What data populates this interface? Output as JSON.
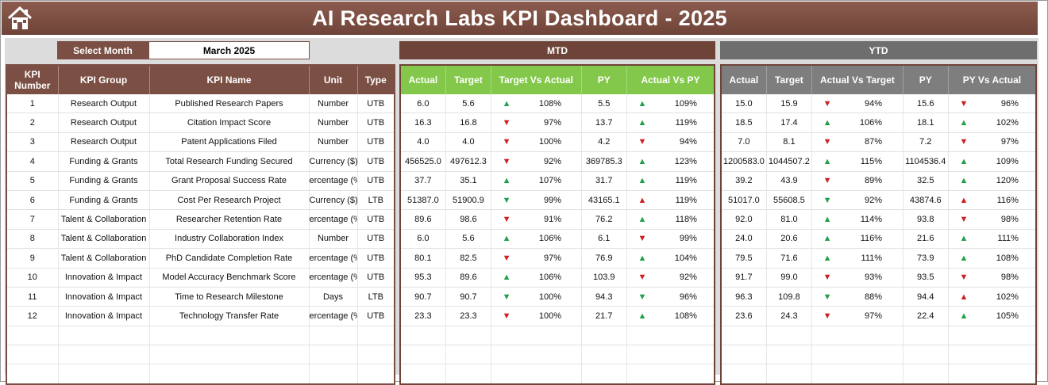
{
  "title": "AI Research Labs KPI Dashboard - 2025",
  "select_month": {
    "label": "Select Month",
    "value": "March 2025"
  },
  "sections": {
    "mtd": "MTD",
    "ytd": "YTD"
  },
  "kpi_headers": [
    "KPI Number",
    "KPI Group",
    "KPI Name",
    "Unit",
    "Type"
  ],
  "mtd_headers": [
    "Actual",
    "Target",
    "Target Vs Actual",
    "PY",
    "Actual Vs PY"
  ],
  "ytd_headers": [
    "Actual",
    "Target",
    "Actual Vs Target",
    "PY",
    "PY Vs Actual"
  ],
  "colors": {
    "brown": "#7b4f43",
    "green": "#83c84a",
    "gray": "#7e7e7e",
    "up": "#1fa04a",
    "down": "#d11e1e"
  },
  "rows": [
    {
      "num": "1",
      "group": "Research Output",
      "name": "Published Research Papers",
      "unit": "Number",
      "type": "UTB",
      "mtd": {
        "actual": "6.0",
        "target": "5.6",
        "tva_dir": "up",
        "tva_pct": "108%",
        "py": "5.5",
        "avp_dir": "up",
        "avp_pct": "109%"
      },
      "ytd": {
        "actual": "15.0",
        "target": "15.9",
        "avt_dir": "down",
        "avt_pct": "94%",
        "py": "15.6",
        "pva_dir": "down",
        "pva_pct": "96%"
      }
    },
    {
      "num": "2",
      "group": "Research Output",
      "name": "Citation Impact Score",
      "unit": "Number",
      "type": "UTB",
      "mtd": {
        "actual": "16.3",
        "target": "16.8",
        "tva_dir": "down",
        "tva_pct": "97%",
        "py": "13.7",
        "avp_dir": "up",
        "avp_pct": "119%"
      },
      "ytd": {
        "actual": "18.5",
        "target": "17.4",
        "avt_dir": "up",
        "avt_pct": "106%",
        "py": "18.1",
        "pva_dir": "up",
        "pva_pct": "102%"
      }
    },
    {
      "num": "3",
      "group": "Research Output",
      "name": "Patent Applications Filed",
      "unit": "Number",
      "type": "UTB",
      "mtd": {
        "actual": "4.0",
        "target": "4.0",
        "tva_dir": "down",
        "tva_pct": "100%",
        "py": "4.2",
        "avp_dir": "down",
        "avp_pct": "94%"
      },
      "ytd": {
        "actual": "7.0",
        "target": "8.1",
        "avt_dir": "down",
        "avt_pct": "87%",
        "py": "7.2",
        "pva_dir": "down",
        "pva_pct": "97%"
      }
    },
    {
      "num": "4",
      "group": "Funding & Grants",
      "name": "Total Research Funding Secured",
      "unit": "Currency ($)",
      "type": "UTB",
      "mtd": {
        "actual": "456525.0",
        "target": "497612.3",
        "tva_dir": "down",
        "tva_pct": "92%",
        "py": "369785.3",
        "avp_dir": "up",
        "avp_pct": "123%"
      },
      "ytd": {
        "actual": "1200583.0",
        "target": "1044507.2",
        "avt_dir": "up",
        "avt_pct": "115%",
        "py": "1104536.4",
        "pva_dir": "up",
        "pva_pct": "109%"
      }
    },
    {
      "num": "5",
      "group": "Funding & Grants",
      "name": "Grant Proposal Success Rate",
      "unit": "ercentage (%",
      "type": "UTB",
      "mtd": {
        "actual": "37.7",
        "target": "35.1",
        "tva_dir": "up",
        "tva_pct": "107%",
        "py": "31.7",
        "avp_dir": "up",
        "avp_pct": "119%"
      },
      "ytd": {
        "actual": "39.2",
        "target": "43.9",
        "avt_dir": "down",
        "avt_pct": "89%",
        "py": "32.5",
        "pva_dir": "up",
        "pva_pct": "120%"
      }
    },
    {
      "num": "6",
      "group": "Funding & Grants",
      "name": "Cost Per Research Project",
      "unit": "Currency ($)",
      "type": "LTB",
      "mtd": {
        "actual": "51387.0",
        "target": "51900.9",
        "tva_dir": "down-green",
        "tva_pct": "99%",
        "py": "43165.1",
        "avp_dir": "up-red",
        "avp_pct": "119%"
      },
      "ytd": {
        "actual": "51017.0",
        "target": "55608.5",
        "avt_dir": "down-green",
        "avt_pct": "92%",
        "py": "43874.6",
        "pva_dir": "up-red",
        "pva_pct": "116%"
      }
    },
    {
      "num": "7",
      "group": "Talent & Collaboration",
      "name": "Researcher Retention Rate",
      "unit": "ercentage (%",
      "type": "UTB",
      "mtd": {
        "actual": "89.6",
        "target": "98.6",
        "tva_dir": "down",
        "tva_pct": "91%",
        "py": "76.2",
        "avp_dir": "up",
        "avp_pct": "118%"
      },
      "ytd": {
        "actual": "92.0",
        "target": "81.0",
        "avt_dir": "up",
        "avt_pct": "114%",
        "py": "93.8",
        "pva_dir": "down",
        "pva_pct": "98%"
      }
    },
    {
      "num": "8",
      "group": "Talent & Collaboration",
      "name": "Industry Collaboration Index",
      "unit": "Number",
      "type": "UTB",
      "mtd": {
        "actual": "6.0",
        "target": "5.6",
        "tva_dir": "up",
        "tva_pct": "106%",
        "py": "6.1",
        "avp_dir": "down",
        "avp_pct": "99%"
      },
      "ytd": {
        "actual": "24.0",
        "target": "20.6",
        "avt_dir": "up",
        "avt_pct": "116%",
        "py": "21.6",
        "pva_dir": "up",
        "pva_pct": "111%"
      }
    },
    {
      "num": "9",
      "group": "Talent & Collaboration",
      "name": "PhD Candidate Completion Rate",
      "unit": "ercentage (%",
      "type": "UTB",
      "mtd": {
        "actual": "80.1",
        "target": "82.5",
        "tva_dir": "down",
        "tva_pct": "97%",
        "py": "76.9",
        "avp_dir": "up",
        "avp_pct": "104%"
      },
      "ytd": {
        "actual": "79.5",
        "target": "71.6",
        "avt_dir": "up",
        "avt_pct": "111%",
        "py": "73.9",
        "pva_dir": "up",
        "pva_pct": "108%"
      }
    },
    {
      "num": "10",
      "group": "Innovation & Impact",
      "name": "Model Accuracy Benchmark Score",
      "unit": "ercentage (%",
      "type": "UTB",
      "mtd": {
        "actual": "95.3",
        "target": "89.6",
        "tva_dir": "up",
        "tva_pct": "106%",
        "py": "103.9",
        "avp_dir": "down",
        "avp_pct": "92%"
      },
      "ytd": {
        "actual": "91.7",
        "target": "99.0",
        "avt_dir": "down",
        "avt_pct": "93%",
        "py": "93.5",
        "pva_dir": "down",
        "pva_pct": "98%"
      }
    },
    {
      "num": "11",
      "group": "Innovation & Impact",
      "name": "Time to Research Milestone",
      "unit": "Days",
      "type": "LTB",
      "mtd": {
        "actual": "90.7",
        "target": "90.7",
        "tva_dir": "down-green",
        "tva_pct": "100%",
        "py": "94.3",
        "avp_dir": "down-green",
        "avp_pct": "96%"
      },
      "ytd": {
        "actual": "96.3",
        "target": "109.8",
        "avt_dir": "down-green",
        "avt_pct": "88%",
        "py": "94.4",
        "pva_dir": "up-red",
        "pva_pct": "102%"
      }
    },
    {
      "num": "12",
      "group": "Innovation & Impact",
      "name": "Technology Transfer Rate",
      "unit": "ercentage (%",
      "type": "UTB",
      "mtd": {
        "actual": "23.3",
        "target": "23.3",
        "tva_dir": "down",
        "tva_pct": "100%",
        "py": "21.7",
        "avp_dir": "up",
        "avp_pct": "108%"
      },
      "ytd": {
        "actual": "23.6",
        "target": "24.3",
        "avt_dir": "down",
        "avt_pct": "97%",
        "py": "22.4",
        "pva_dir": "up",
        "pva_pct": "105%"
      }
    }
  ],
  "empty_rows": 3
}
